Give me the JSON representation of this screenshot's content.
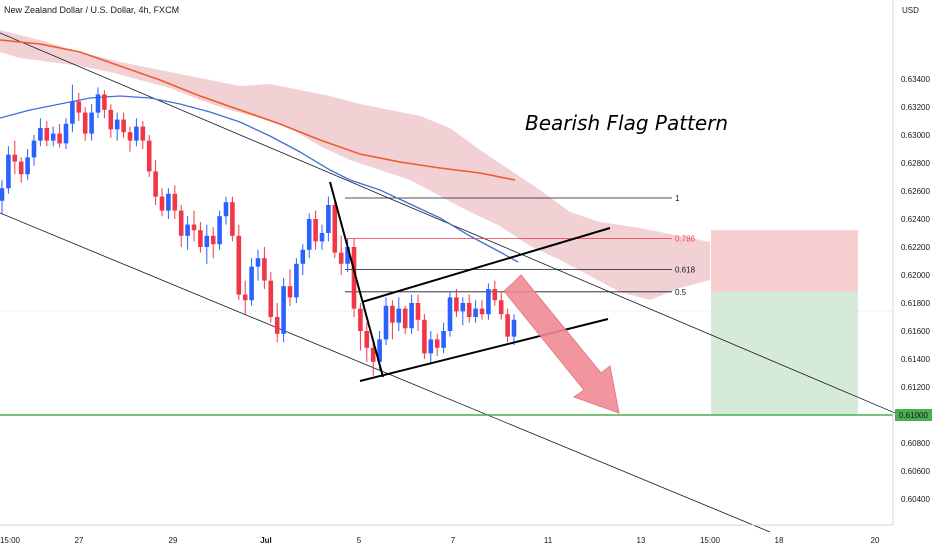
{
  "header": {
    "symbol_title": "New Zealand Dollar / U.S. Dollar, 4h, FXCM",
    "currency": "USD"
  },
  "annotation": "Bearish Flag Pattern",
  "colors": {
    "bull": "#2962ff",
    "bear": "#f23645",
    "ema_fast": "#3f6fd8",
    "ema_slow": "#f15a2b",
    "cloud": "#e9b3b8",
    "target_line": "#4caf50",
    "stop_zone": "#f7c4c7",
    "profit_zone": "#cfe6d2",
    "arrow": "#f08a94"
  },
  "chart_data": {
    "type": "candlestick",
    "title": "New Zealand Dollar / U.S. Dollar, 4h, FXCM",
    "ylabel": "USD",
    "ylim": [
      0.6028,
      0.6372
    ],
    "x_ticks": [
      "15:00",
      "27",
      "29",
      "Jul",
      "5",
      "7",
      "11",
      "13",
      "15:00",
      "18",
      "20"
    ],
    "y_ticks": [
      "0.63400",
      "0.63200",
      "0.63000",
      "0.62800",
      "0.62600",
      "0.62400",
      "0.62200",
      "0.62000",
      "0.61800",
      "0.61600",
      "0.61400",
      "0.61200",
      "0.61000",
      "0.60800",
      "0.60600",
      "0.60400"
    ],
    "price_marker": "0.61000",
    "fib_levels": [
      {
        "label": "1",
        "price": 0.6255
      },
      {
        "label": "0.786",
        "price": 0.6226
      },
      {
        "label": "0.618",
        "price": 0.6204
      },
      {
        "label": "0.5",
        "price": 0.6188
      }
    ],
    "target_price": 0.61,
    "position": {
      "entry": 0.6188,
      "stop": 0.6232,
      "target": 0.61
    },
    "candles": [
      [
        0.6253,
        0.6268,
        0.6244,
        0.6262
      ],
      [
        0.6262,
        0.6292,
        0.6258,
        0.6286
      ],
      [
        0.6286,
        0.6296,
        0.6272,
        0.6281
      ],
      [
        0.6281,
        0.6284,
        0.6266,
        0.6272
      ],
      [
        0.6272,
        0.629,
        0.6268,
        0.6284
      ],
      [
        0.6284,
        0.63,
        0.6278,
        0.6296
      ],
      [
        0.6296,
        0.6312,
        0.6292,
        0.6305
      ],
      [
        0.6305,
        0.631,
        0.6292,
        0.6296
      ],
      [
        0.6296,
        0.6306,
        0.6292,
        0.6301
      ],
      [
        0.6301,
        0.6308,
        0.6291,
        0.6294
      ],
      [
        0.6294,
        0.6312,
        0.629,
        0.6308
      ],
      [
        0.6308,
        0.6336,
        0.6302,
        0.6324
      ],
      [
        0.6324,
        0.633,
        0.631,
        0.6316
      ],
      [
        0.6316,
        0.632,
        0.6296,
        0.6301
      ],
      [
        0.6301,
        0.6322,
        0.6296,
        0.6316
      ],
      [
        0.6316,
        0.6334,
        0.6312,
        0.6329
      ],
      [
        0.6329,
        0.6332,
        0.6312,
        0.6318
      ],
      [
        0.6318,
        0.6322,
        0.6298,
        0.6304
      ],
      [
        0.6304,
        0.6316,
        0.6296,
        0.6311
      ],
      [
        0.6311,
        0.6316,
        0.6298,
        0.6302
      ],
      [
        0.6302,
        0.6306,
        0.6288,
        0.6296
      ],
      [
        0.6296,
        0.6312,
        0.6292,
        0.6306
      ],
      [
        0.6306,
        0.631,
        0.629,
        0.6296
      ],
      [
        0.6296,
        0.63,
        0.627,
        0.6274
      ],
      [
        0.6274,
        0.6282,
        0.625,
        0.6256
      ],
      [
        0.6256,
        0.6262,
        0.6242,
        0.6246
      ],
      [
        0.6246,
        0.6262,
        0.624,
        0.6258
      ],
      [
        0.6258,
        0.6264,
        0.624,
        0.6246
      ],
      [
        0.6246,
        0.625,
        0.622,
        0.6228
      ],
      [
        0.6228,
        0.6242,
        0.6218,
        0.6236
      ],
      [
        0.6236,
        0.6246,
        0.6224,
        0.6232
      ],
      [
        0.6232,
        0.6238,
        0.6216,
        0.622
      ],
      [
        0.622,
        0.6236,
        0.6208,
        0.6228
      ],
      [
        0.6228,
        0.6234,
        0.6212,
        0.6222
      ],
      [
        0.6222,
        0.6246,
        0.6218,
        0.6242
      ],
      [
        0.6242,
        0.6256,
        0.6236,
        0.6252
      ],
      [
        0.6252,
        0.6256,
        0.6224,
        0.6228
      ],
      [
        0.6228,
        0.6236,
        0.6182,
        0.6186
      ],
      [
        0.6186,
        0.6196,
        0.6172,
        0.6182
      ],
      [
        0.6182,
        0.6212,
        0.6178,
        0.6206
      ],
      [
        0.6206,
        0.6218,
        0.6196,
        0.6212
      ],
      [
        0.6212,
        0.622,
        0.619,
        0.6196
      ],
      [
        0.6196,
        0.6202,
        0.6166,
        0.617
      ],
      [
        0.617,
        0.618,
        0.6152,
        0.6158
      ],
      [
        0.6158,
        0.6198,
        0.6152,
        0.6192
      ],
      [
        0.6192,
        0.6204,
        0.6178,
        0.6184
      ],
      [
        0.6184,
        0.6212,
        0.618,
        0.6208
      ],
      [
        0.6208,
        0.6222,
        0.62,
        0.6218
      ],
      [
        0.6218,
        0.6244,
        0.6212,
        0.624
      ],
      [
        0.624,
        0.6246,
        0.6218,
        0.6224
      ],
      [
        0.6224,
        0.6236,
        0.6218,
        0.623
      ],
      [
        0.623,
        0.6256,
        0.6224,
        0.625
      ],
      [
        0.625,
        0.6252,
        0.6212,
        0.6216
      ],
      [
        0.6216,
        0.6228,
        0.62,
        0.6208
      ],
      [
        0.6208,
        0.6226,
        0.6202,
        0.622
      ],
      [
        0.622,
        0.6226,
        0.617,
        0.6176
      ],
      [
        0.6176,
        0.618,
        0.6146,
        0.616
      ],
      [
        0.616,
        0.6166,
        0.6138,
        0.6148
      ],
      [
        0.6148,
        0.6154,
        0.6128,
        0.6138
      ],
      [
        0.6138,
        0.616,
        0.6132,
        0.6154
      ],
      [
        0.6154,
        0.6184,
        0.615,
        0.6178
      ],
      [
        0.6178,
        0.6182,
        0.6154,
        0.6166
      ],
      [
        0.6166,
        0.6184,
        0.616,
        0.6176
      ],
      [
        0.6176,
        0.6178,
        0.6158,
        0.6162
      ],
      [
        0.6162,
        0.6186,
        0.6158,
        0.618
      ],
      [
        0.618,
        0.6186,
        0.616,
        0.6168
      ],
      [
        0.6168,
        0.6172,
        0.614,
        0.6144
      ],
      [
        0.6144,
        0.616,
        0.6136,
        0.6154
      ],
      [
        0.6154,
        0.6158,
        0.6142,
        0.6148
      ],
      [
        0.6148,
        0.6166,
        0.6144,
        0.616
      ],
      [
        0.616,
        0.6188,
        0.6156,
        0.6184
      ],
      [
        0.6184,
        0.619,
        0.617,
        0.6174
      ],
      [
        0.6174,
        0.6184,
        0.6164,
        0.618
      ],
      [
        0.618,
        0.6186,
        0.6166,
        0.617
      ],
      [
        0.617,
        0.6182,
        0.6166,
        0.6176
      ],
      [
        0.6176,
        0.6182,
        0.6168,
        0.6172
      ],
      [
        0.6172,
        0.6194,
        0.6168,
        0.619
      ],
      [
        0.619,
        0.6196,
        0.6178,
        0.6182
      ],
      [
        0.6182,
        0.6188,
        0.6168,
        0.6172
      ],
      [
        0.6172,
        0.6176,
        0.6152,
        0.6156
      ],
      [
        0.6156,
        0.6172,
        0.615,
        0.6168
      ]
    ]
  }
}
